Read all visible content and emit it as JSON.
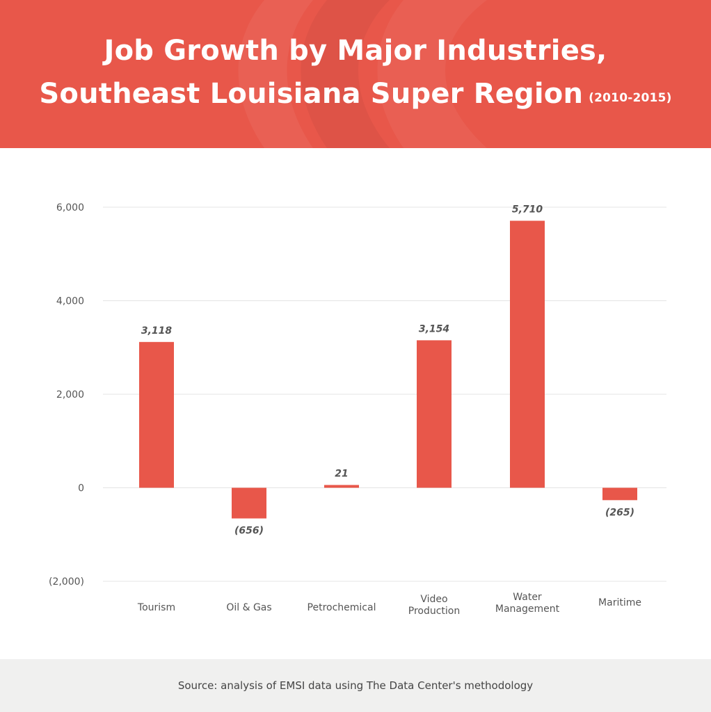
{
  "header": {
    "title_line1": "Job Growth by Major Industries,",
    "title_line2": "Southeast Louisiana Super Region",
    "title_period": "(2010-2015)"
  },
  "footer": {
    "source": "Source: analysis of EMSI data using The Data Center's methodology"
  },
  "colors": {
    "header_bg": "#e8574a",
    "bar": "#e8574a",
    "gridline": "#e4e4e4",
    "footer_bg": "#f0f0ef"
  },
  "chart_data": {
    "type": "bar",
    "title": "Job Growth by Major Industries, Southeast Louisiana Super Region (2010-2015)",
    "categories": [
      [
        "Tourism"
      ],
      [
        "Oil & Gas"
      ],
      [
        "Petrochemical"
      ],
      [
        "Video",
        "Production"
      ],
      [
        "Water",
        "Management"
      ],
      [
        "Maritime"
      ]
    ],
    "values": [
      3118,
      -656,
      21,
      3154,
      5710,
      -265
    ],
    "data_labels": [
      "3,118",
      "(656)",
      "21",
      "3,154",
      "5,710",
      "(265)"
    ],
    "yticks": [
      6000,
      4000,
      2000,
      0,
      -2000
    ],
    "ytick_labels": [
      "6,000",
      "4,000",
      "2,000",
      "0",
      "(2,000)"
    ],
    "ylim": [
      -2000,
      6000
    ],
    "grid": true,
    "legend": "none",
    "xlabel": "",
    "ylabel": ""
  }
}
